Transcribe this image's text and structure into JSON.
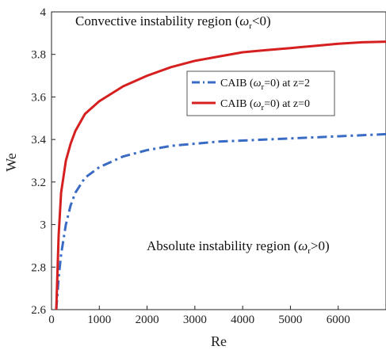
{
  "chart_data": {
    "type": "line",
    "xlabel": "Re",
    "ylabel": "We",
    "xlim": [
      0,
      7000
    ],
    "ylim": [
      2.6,
      4.0
    ],
    "x_ticks": [
      0,
      1000,
      2000,
      3000,
      4000,
      5000,
      6000
    ],
    "y_ticks": [
      2.6,
      2.8,
      3.0,
      3.2,
      3.4,
      3.6,
      3.8,
      4.0
    ],
    "x_tick_labels": [
      "0",
      "1000",
      "2000",
      "3000",
      "4000",
      "5000",
      "6000"
    ],
    "y_tick_labels": [
      "2.6",
      "2.8",
      "3",
      "3.2",
      "3.4",
      "3.6",
      "3.8",
      "4"
    ],
    "grid": false,
    "legend_position": "upper-right",
    "annotations": [
      {
        "text": "Convective instability region (ω_r<0)",
        "base": "Convective instability region (",
        "sym": "ω",
        "sub": "r",
        "tail": "<0)"
      },
      {
        "text": "Absolute instability region (ω_r>0)",
        "base": "Absolute instability region (",
        "sym": "ω",
        "sub": "r",
        "tail": ">0)"
      }
    ],
    "series": [
      {
        "name": "CAIB (ω_r=0) at z=2",
        "label_parts": {
          "pre": "CAIB (",
          "sym": "ω",
          "sub": "r",
          "post": "=0) at z=2"
        },
        "color": "#3a6bc4",
        "style": "dashdot",
        "x": [
          100,
          150,
          200,
          300,
          400,
          500,
          700,
          1000,
          1500,
          2000,
          2500,
          3000,
          3500,
          4000,
          4500,
          5000,
          5500,
          6000,
          6500,
          7000
        ],
        "y": [
          2.6,
          2.75,
          2.86,
          3.0,
          3.09,
          3.15,
          3.22,
          3.27,
          3.32,
          3.35,
          3.37,
          3.38,
          3.39,
          3.395,
          3.4,
          3.405,
          3.41,
          3.415,
          3.42,
          3.425
        ]
      },
      {
        "name": "CAIB (ω_r=0) at z=0",
        "label_parts": {
          "pre": "CAIB (",
          "sym": "ω",
          "sub": "r",
          "post": "=0) at z=0"
        },
        "color": "#d61f1f",
        "style": "solid",
        "x": [
          100,
          150,
          200,
          300,
          400,
          500,
          700,
          1000,
          1500,
          2000,
          2500,
          3000,
          3500,
          4000,
          4500,
          5000,
          5500,
          6000,
          6500,
          7000
        ],
        "y": [
          2.6,
          2.95,
          3.15,
          3.3,
          3.38,
          3.44,
          3.52,
          3.58,
          3.65,
          3.7,
          3.74,
          3.77,
          3.79,
          3.81,
          3.82,
          3.83,
          3.84,
          3.85,
          3.857,
          3.86
        ]
      }
    ]
  }
}
